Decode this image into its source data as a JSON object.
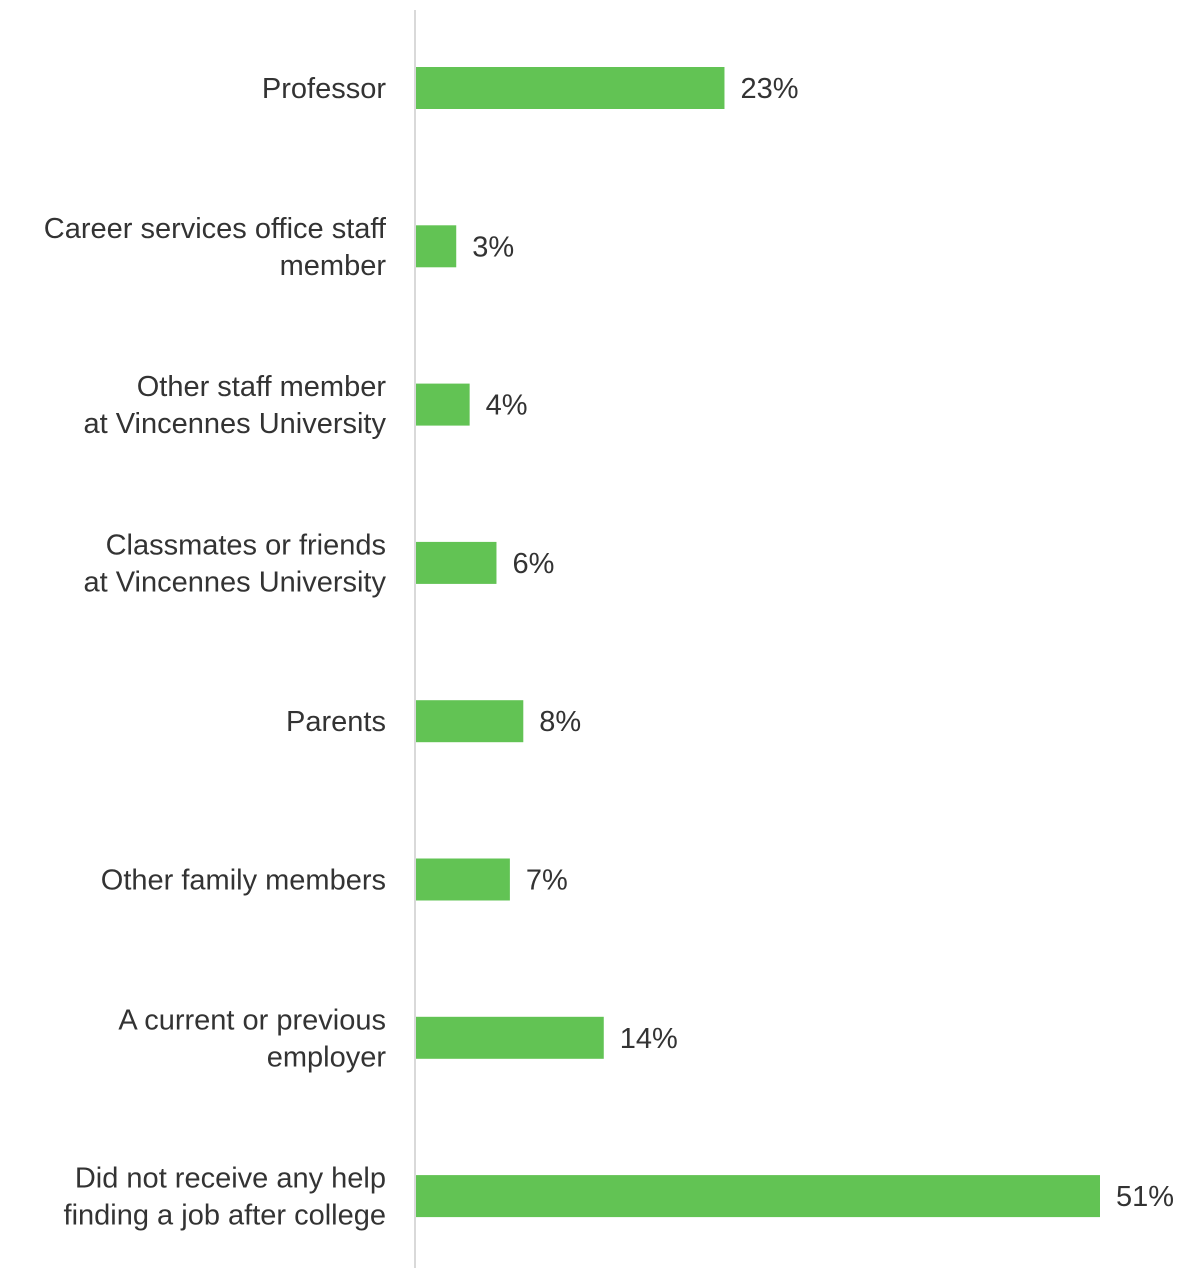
{
  "chart_data": {
    "type": "bar",
    "orientation": "horizontal",
    "title": "",
    "xlabel": "",
    "ylabel": "",
    "categories": [
      [
        "Professor"
      ],
      [
        "Career services office staff",
        "member"
      ],
      [
        "Other staff member",
        "at Vincennes University"
      ],
      [
        "Classmates or friends",
        "at Vincennes University"
      ],
      [
        "Parents"
      ],
      [
        "Other family members"
      ],
      [
        "A current or previous",
        "employer"
      ],
      [
        "Did not receive any help",
        "finding a job after college"
      ]
    ],
    "values": [
      23,
      3,
      4,
      6,
      8,
      7,
      14,
      51
    ],
    "value_labels": [
      "23%",
      "3%",
      "4%",
      "6%",
      "8%",
      "7%",
      "14%",
      "51%"
    ],
    "unit": "%",
    "xlim": [
      0,
      51
    ],
    "grid": false,
    "legend": "none",
    "colors": {
      "bar": "#62c354",
      "axis": "#d9d9d9",
      "text": "#333333"
    }
  }
}
